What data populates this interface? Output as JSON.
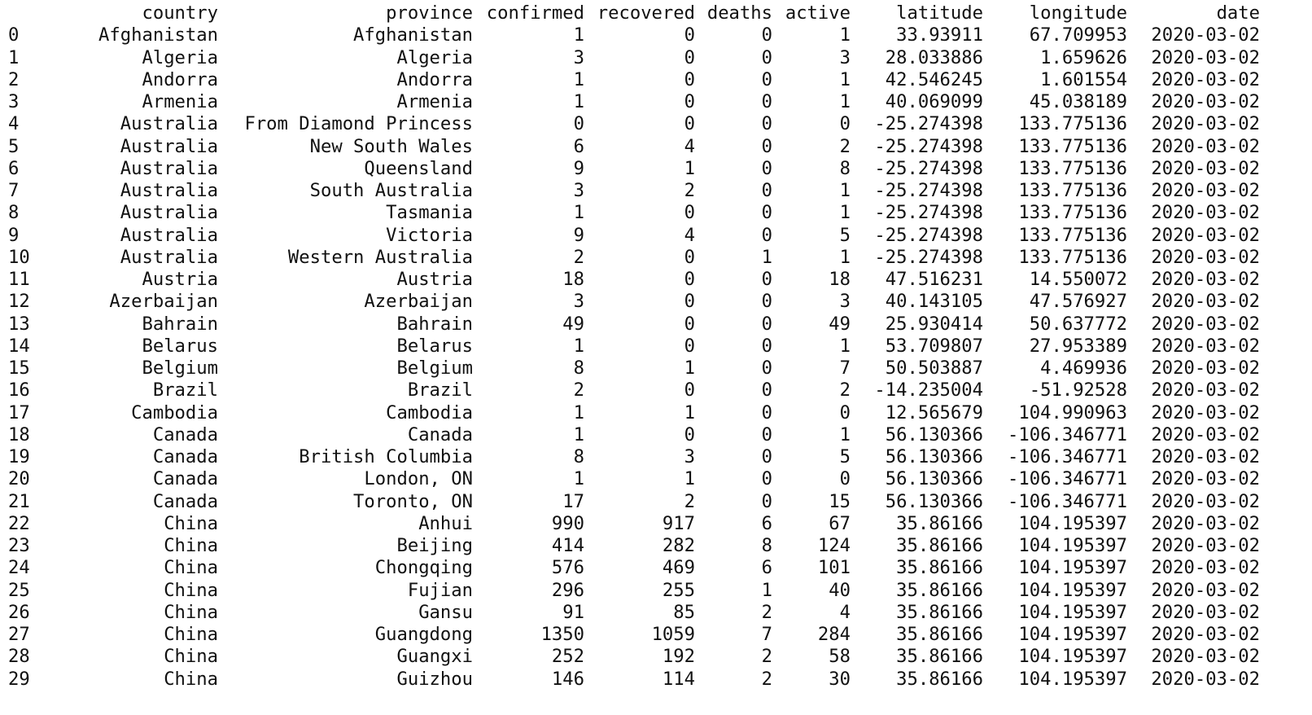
{
  "columns": [
    "",
    "country",
    "province",
    "confirmed",
    "recovered",
    "deaths",
    "active",
    "latitude",
    "longitude",
    "date"
  ],
  "rows": [
    [
      "0",
      "Afghanistan",
      "Afghanistan",
      "1",
      "0",
      "0",
      "1",
      "33.93911",
      "67.709953",
      "2020-03-02"
    ],
    [
      "1",
      "Algeria",
      "Algeria",
      "3",
      "0",
      "0",
      "3",
      "28.033886",
      "1.659626",
      "2020-03-02"
    ],
    [
      "2",
      "Andorra",
      "Andorra",
      "1",
      "0",
      "0",
      "1",
      "42.546245",
      "1.601554",
      "2020-03-02"
    ],
    [
      "3",
      "Armenia",
      "Armenia",
      "1",
      "0",
      "0",
      "1",
      "40.069099",
      "45.038189",
      "2020-03-02"
    ],
    [
      "4",
      "Australia",
      "From Diamond Princess",
      "0",
      "0",
      "0",
      "0",
      "-25.274398",
      "133.775136",
      "2020-03-02"
    ],
    [
      "5",
      "Australia",
      "New South Wales",
      "6",
      "4",
      "0",
      "2",
      "-25.274398",
      "133.775136",
      "2020-03-02"
    ],
    [
      "6",
      "Australia",
      "Queensland",
      "9",
      "1",
      "0",
      "8",
      "-25.274398",
      "133.775136",
      "2020-03-02"
    ],
    [
      "7",
      "Australia",
      "South Australia",
      "3",
      "2",
      "0",
      "1",
      "-25.274398",
      "133.775136",
      "2020-03-02"
    ],
    [
      "8",
      "Australia",
      "Tasmania",
      "1",
      "0",
      "0",
      "1",
      "-25.274398",
      "133.775136",
      "2020-03-02"
    ],
    [
      "9",
      "Australia",
      "Victoria",
      "9",
      "4",
      "0",
      "5",
      "-25.274398",
      "133.775136",
      "2020-03-02"
    ],
    [
      "10",
      "Australia",
      "Western Australia",
      "2",
      "0",
      "1",
      "1",
      "-25.274398",
      "133.775136",
      "2020-03-02"
    ],
    [
      "11",
      "Austria",
      "Austria",
      "18",
      "0",
      "0",
      "18",
      "47.516231",
      "14.550072",
      "2020-03-02"
    ],
    [
      "12",
      "Azerbaijan",
      "Azerbaijan",
      "3",
      "0",
      "0",
      "3",
      "40.143105",
      "47.576927",
      "2020-03-02"
    ],
    [
      "13",
      "Bahrain",
      "Bahrain",
      "49",
      "0",
      "0",
      "49",
      "25.930414",
      "50.637772",
      "2020-03-02"
    ],
    [
      "14",
      "Belarus",
      "Belarus",
      "1",
      "0",
      "0",
      "1",
      "53.709807",
      "27.953389",
      "2020-03-02"
    ],
    [
      "15",
      "Belgium",
      "Belgium",
      "8",
      "1",
      "0",
      "7",
      "50.503887",
      "4.469936",
      "2020-03-02"
    ],
    [
      "16",
      "Brazil",
      "Brazil",
      "2",
      "0",
      "0",
      "2",
      "-14.235004",
      "-51.92528",
      "2020-03-02"
    ],
    [
      "17",
      "Cambodia",
      "Cambodia",
      "1",
      "1",
      "0",
      "0",
      "12.565679",
      "104.990963",
      "2020-03-02"
    ],
    [
      "18",
      "Canada",
      "Canada",
      "1",
      "0",
      "0",
      "1",
      "56.130366",
      "-106.346771",
      "2020-03-02"
    ],
    [
      "19",
      "Canada",
      "British Columbia",
      "8",
      "3",
      "0",
      "5",
      "56.130366",
      "-106.346771",
      "2020-03-02"
    ],
    [
      "20",
      "Canada",
      "London, ON",
      "1",
      "1",
      "0",
      "0",
      "56.130366",
      "-106.346771",
      "2020-03-02"
    ],
    [
      "21",
      "Canada",
      "Toronto, ON",
      "17",
      "2",
      "0",
      "15",
      "56.130366",
      "-106.346771",
      "2020-03-02"
    ],
    [
      "22",
      "China",
      "Anhui",
      "990",
      "917",
      "6",
      "67",
      "35.86166",
      "104.195397",
      "2020-03-02"
    ],
    [
      "23",
      "China",
      "Beijing",
      "414",
      "282",
      "8",
      "124",
      "35.86166",
      "104.195397",
      "2020-03-02"
    ],
    [
      "24",
      "China",
      "Chongqing",
      "576",
      "469",
      "6",
      "101",
      "35.86166",
      "104.195397",
      "2020-03-02"
    ],
    [
      "25",
      "China",
      "Fujian",
      "296",
      "255",
      "1",
      "40",
      "35.86166",
      "104.195397",
      "2020-03-02"
    ],
    [
      "26",
      "China",
      "Gansu",
      "91",
      "85",
      "2",
      "4",
      "35.86166",
      "104.195397",
      "2020-03-02"
    ],
    [
      "27",
      "China",
      "Guangdong",
      "1350",
      "1059",
      "7",
      "284",
      "35.86166",
      "104.195397",
      "2020-03-02"
    ],
    [
      "28",
      "China",
      "Guangxi",
      "252",
      "192",
      "2",
      "58",
      "35.86166",
      "104.195397",
      "2020-03-02"
    ],
    [
      "29",
      "China",
      "Guizhou",
      "146",
      "114",
      "2",
      "30",
      "35.86166",
      "104.195397",
      "2020-03-02"
    ]
  ]
}
